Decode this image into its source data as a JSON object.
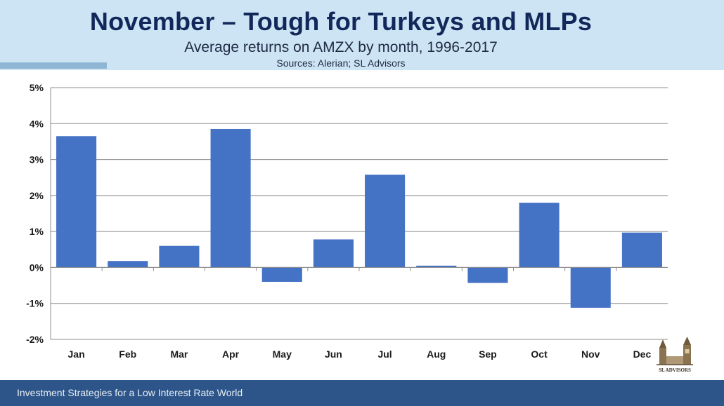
{
  "header": {
    "title": "November – Tough for Turkeys and MLPs",
    "subtitle": "Average returns on AMZX by month, 1996-2017",
    "source": "Sources: Alerian; SL Advisors"
  },
  "footer": {
    "text": "Investment Strategies for a Low Interest Rate World"
  },
  "logo": {
    "text": "SL ADVISORS",
    "icon": "towers-icon"
  },
  "colors": {
    "bar": "#4472c4",
    "header_bg": "#cde4f4",
    "footer_bg": "#2d5589",
    "title": "#13285a"
  },
  "chart_data": {
    "type": "bar",
    "categories": [
      "Jan",
      "Feb",
      "Mar",
      "Apr",
      "May",
      "Jun",
      "Jul",
      "Aug",
      "Sep",
      "Oct",
      "Nov",
      "Dec"
    ],
    "values": [
      3.65,
      0.18,
      0.6,
      3.85,
      -0.4,
      0.78,
      2.58,
      0.05,
      -0.43,
      1.8,
      -1.12,
      0.97
    ],
    "ylim": [
      -2,
      5
    ],
    "yticks": [
      "-2%",
      "-1%",
      "0%",
      "1%",
      "2%",
      "3%",
      "4%",
      "5%"
    ],
    "grid": true,
    "legend": "none"
  }
}
